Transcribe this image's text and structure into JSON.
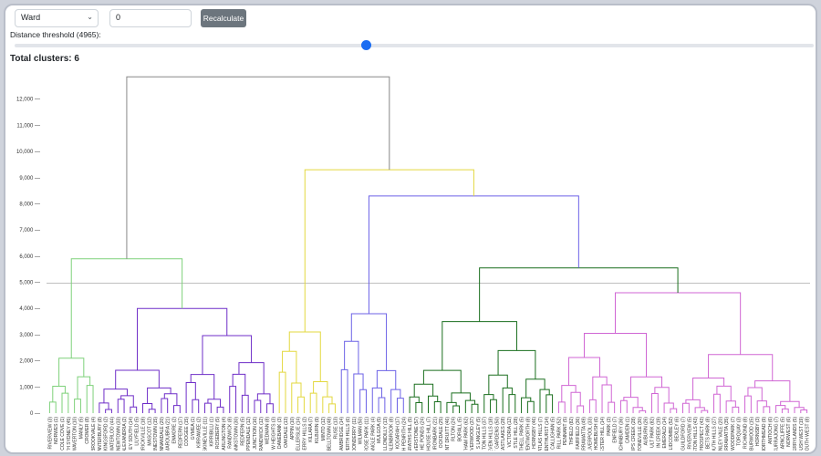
{
  "controls": {
    "method_value": "Ward",
    "threshold_input_value": "0",
    "recalculate_label": "Recalculate",
    "threshold_label": "Distance threshold (4965):",
    "slider_fraction": 0.44,
    "total_clusters_label": "Total clusters: 6"
  },
  "chart_data": {
    "type": "dendrogram",
    "ylim": [
      0,
      13000
    ],
    "yticks": [
      0,
      1000,
      2000,
      3000,
      4000,
      5000,
      6000,
      7000,
      8000,
      9000,
      10000,
      11000,
      12000
    ],
    "ytick_labels": [
      "0 —",
      "1,000 —",
      "2,000 —",
      "3,000 —",
      "4,000 —",
      "5,000 —",
      "6,000 —",
      "7,000 —",
      "8,000 —",
      "9,000 —",
      "10,000 —",
      "11,000 —",
      "12,000 —"
    ],
    "threshold": 4965,
    "colors": {
      "light-green": "#7ed17a",
      "purple": "#6f2ec8",
      "yellow": "#e3d83f",
      "blue": "#6c62e6",
      "dark-green": "#1a6f1e",
      "pink": "#d066d4",
      "root": "#888888"
    },
    "leaves": [
      "RIVERVIEW (3)",
      "NORWES (1)",
      "PICOLE COVE (1)",
      "ITH SYDNEY (45)",
      "WAVERTON (10)",
      "MANLY (5)",
      "CROMER (8)",
      "BROOKVALE (4)",
      "CANTERBURY (8)",
      "KINGSFORD (2)",
      "WATERLOO (44)",
      "NEWTOWN (33)",
      "ALEXANDRIA (2)",
      "EY SOUTH (14)",
      "LILYFIELD (5)",
      "MARRICKVILLE (18)",
      "MASCOT (12)",
      "OURNESTOWN (15)",
      "ANNANDALE (20)",
      "MAROUBRA (21)",
      "ENMORE (2)",
      "REDFERN (17)",
      "COOGEE (15)",
      "GYMEA (1)",
      "KIRRAWEE (2)",
      "ERSKINEVILLE (11)",
      "KIRRIBILLI (1)",
      "ROSEBERY (5)",
      "DARLINGTON (4)",
      "RANDWICK (8)",
      "RANKSTOWN (30)",
      "REDFERN (5)",
      "CHIPPENDALE (12)",
      "JUNCTION (16)",
      "RANDWICK (12)",
      "WEDMAN (8)",
      "W HEIGHTS (3)",
      "DANEBANK (3)",
      "OAKDALE (13)",
      "APPIN (10)",
      "ELLERSLIE (14)",
      "BERRY HILLS (2)",
      "KILLARA (7)",
      "KILBURN (9)",
      "MINTO (12)",
      "BELLTOWN (48)",
      "RUSE (13)",
      "CAMBRIDGE (14)",
      "PERTH HILLS (6)",
      "DONDERRY (11)",
      "WILMAN (50)",
      "ROSE PARK (11)",
      "ANGLE PARK (4)",
      "MULGOA (5)",
      "WOLLONDILLY (13)",
      "CALENBROOK (8)",
      "KOGARAH (17)",
      "H PENRITH (24)",
      "GRATHS HILL (5)",
      "IVERSTONE (57)",
      "HE PONDS (24)",
      "HOUSE HILL (7)",
      "IRONBARK (21)",
      "OCKDALE (25)",
      "NT DRUITT (46)",
      "RLTON (24)",
      "BORALL (5)",
      "THAM PARK (62)",
      "RIVERWOOD (37)",
      "S LANGLEY (5)",
      "TON HILLS (37)",
      "SEVEN HILLS (18)",
      "T GARDENS (50)",
      "EASTLAKES (28)",
      "VICTORIA (12)",
      "STLE HILL (28)",
      "ATHELL PARK (5)",
      "WENTWORTH (8)",
      "HORNSBY (46)",
      "ATLAS HILLS (7)",
      "ENTHURST (14)",
      "CALLIGHAN (5)",
      "RILL PARK (52)",
      "PENNANT (5)",
      "THFIELD (82)",
      "FAIRFIELD (36)",
      "ARRAMATTA (49)",
      "LIVERPOOL (33)",
      "HOMEBUSH (6)",
      "CHESTER HILL (14)",
      "PARK (3)",
      "ENFIELD (7)",
      "MINCHINBURY (36)",
      "CAMDEN (1)",
      "IPS CREEK (28)",
      "ALSTONEVILLE (30)",
      "AUBURN (26)",
      "ULT PARK (82)",
      "IN CREEK (19)",
      "EMERALD (14)",
      "LIDCOMBE (52)",
      "BEXLEY (6)",
      "GUILDFORD (7)",
      "RIVERVIEW (5)",
      "WINSTON HILLS (43)",
      "PROSPECT (43)",
      "BETS PARK (8)",
      "SOUTH HILLS (27)",
      "CANLEY VALE (20)",
      "ARRAMATTA (35)",
      "WOODPARK (7)",
      "TORQUAY (3)",
      "RICHMOND (8)",
      "BURWOOD (15)",
      "HORNSBY (3)",
      "NORTHMEAD (9)",
      "ANTIOCH (6)",
      "KURRAJONG (7)",
      "ARNCLIFFE (5)",
      "NORWEST (6)",
      "MERRYLANDS (5)",
      "HOMEBUSH WEST (19)",
      "SOUTH WEST (8)"
    ],
    "merge_heights": {
      "root": 12850,
      "left_branch": 5900,
      "right_branch": 9300,
      "right_inner": 8300,
      "right_lower": 5550,
      "pink_cluster": 4600,
      "dark_green_cluster": 3500,
      "purple_cluster": 4000,
      "light_green_cluster": 2100,
      "yellow_cluster": 3100,
      "blue_cluster": 3800
    }
  }
}
